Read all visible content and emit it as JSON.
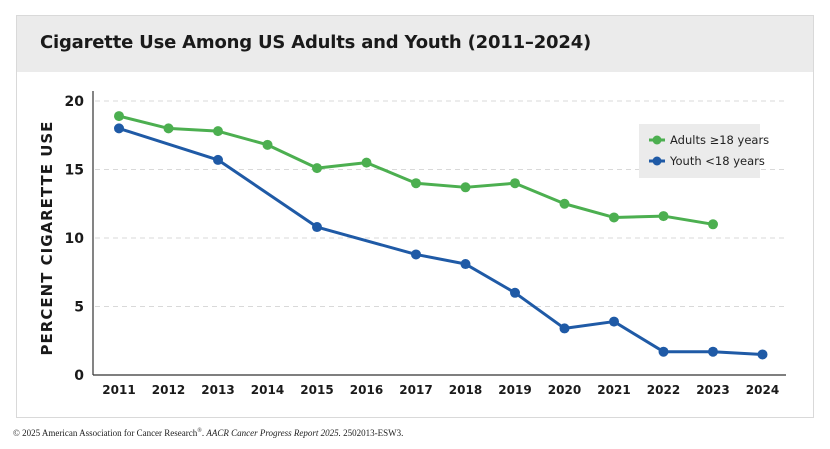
{
  "colors": {
    "adults": "#4caf50",
    "youth": "#1f5aa6",
    "grid": "#d9d9d9",
    "title_band": "#ebebeb"
  },
  "chart_data": {
    "type": "line",
    "title": "Cigarette Use Among US Adults and Youth (2011–2024)",
    "xlabel": "",
    "ylabel": "PERCENT CIGARETTE USE",
    "x": [
      "2011",
      "2012",
      "2013",
      "2014",
      "2015",
      "2016",
      "2017",
      "2018",
      "2019",
      "2020",
      "2021",
      "2022",
      "2023",
      "2024"
    ],
    "yticks": [
      "0",
      "5",
      "10",
      "15",
      "20"
    ],
    "ylim": [
      0,
      20
    ],
    "grid": true,
    "legend_position": "top-right",
    "series": [
      {
        "name": "Adults ≥18 years",
        "color": "#4caf50",
        "values": [
          18.9,
          18.0,
          17.8,
          16.8,
          15.1,
          15.5,
          14.0,
          13.7,
          14.0,
          12.5,
          11.5,
          11.6,
          11.0,
          null
        ]
      },
      {
        "name": "Youth <18 years",
        "color": "#1f5aa6",
        "values": [
          18.0,
          null,
          15.7,
          null,
          10.8,
          null,
          8.8,
          8.1,
          6.0,
          3.4,
          3.9,
          1.7,
          1.7,
          1.5
        ]
      }
    ]
  },
  "footer": {
    "prefix": "© 2025 American Association for Cancer Research",
    "reg": "®",
    "sep": ". ",
    "report": "AACR Cancer Progress Report 2025.",
    "code": " 2502013-ESW3."
  }
}
